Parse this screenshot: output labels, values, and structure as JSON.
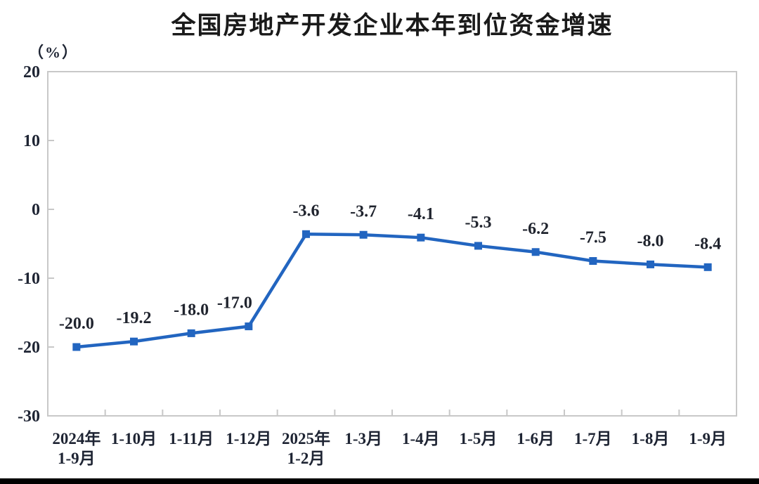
{
  "chart_data": {
    "type": "line",
    "title": "全国房地产开发企业本年到位资金增速",
    "ylabel": "（%）",
    "xlabel": "",
    "categories": [
      "2024年\n1-9月",
      "1-10月",
      "1-11月",
      "1-12月",
      "2025年\n1-2月",
      "1-3月",
      "1-4月",
      "1-5月",
      "1-6月",
      "1-7月",
      "1-8月",
      "1-9月"
    ],
    "values": [
      -20.0,
      -19.2,
      -18.0,
      -17.0,
      -3.6,
      -3.7,
      -4.1,
      -5.3,
      -6.2,
      -7.5,
      -8.0,
      -8.4
    ],
    "value_labels": [
      "-20.0",
      "-19.2",
      "-18.0",
      "-17.0",
      "-3.6",
      "-3.7",
      "-4.1",
      "-5.3",
      "-6.2",
      "-7.5",
      "-8.0",
      "-8.4"
    ],
    "ylim": [
      -30,
      20
    ],
    "yticks": [
      20,
      10,
      0,
      -10,
      -20,
      -30
    ],
    "grid": false,
    "legend": "none",
    "marker": "square",
    "line_color": "#2265C0",
    "axis_color": "#C8C8C8",
    "text_color": "#1E2433",
    "label_offsets_x": [
      0,
      0,
      0,
      -20,
      0,
      0,
      0,
      0,
      0,
      0,
      0,
      0
    ],
    "bottom_bar_color": "#000000"
  }
}
